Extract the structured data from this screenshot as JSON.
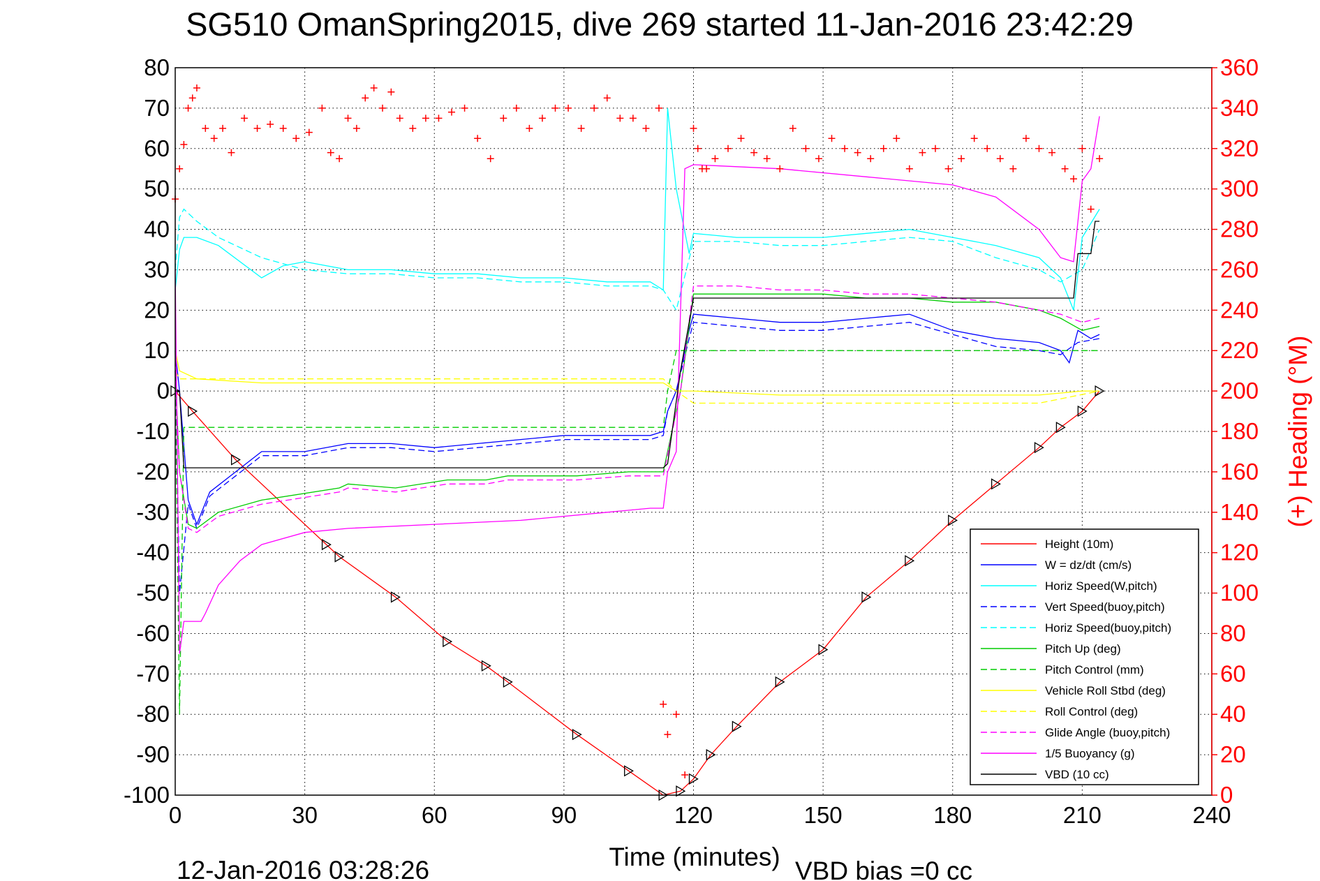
{
  "chart_data": {
    "type": "line",
    "title": "SG510 OmanSpring2015, dive 269 started 11-Jan-2016 23:42:29",
    "xlabel": "Time (minutes)",
    "ylabel_right": "(+) Heading (°M)",
    "footer_left": "12-Jan-2016 03:28:26",
    "footer_right": "VBD bias =0 cc",
    "xlim": [
      0,
      240
    ],
    "ylim": [
      -100,
      80
    ],
    "ylim_right": [
      0,
      360
    ],
    "x_ticks": [
      0,
      30,
      60,
      90,
      120,
      150,
      180,
      210,
      240
    ],
    "y_ticks": [
      80,
      70,
      60,
      50,
      40,
      30,
      20,
      10,
      0,
      -10,
      -20,
      -30,
      -40,
      -50,
      -60,
      -70,
      -80,
      -90,
      -100
    ],
    "y_ticks_right": [
      360,
      340,
      320,
      300,
      280,
      260,
      240,
      220,
      200,
      180,
      160,
      140,
      120,
      100,
      80,
      60,
      40,
      20,
      0
    ],
    "grid": true,
    "legend_position": "bottom-right",
    "series": [
      {
        "name": "Height (10m)",
        "color": "#ff0000",
        "dash": "solid",
        "axis": "left",
        "x": [
          0,
          4,
          14,
          35,
          38,
          51,
          63,
          72,
          77,
          93,
          105,
          113,
          117,
          120,
          124,
          130,
          140,
          150,
          160,
          170,
          180,
          190,
          200,
          205,
          210,
          214
        ],
        "y": [
          0,
          -5,
          -17,
          -38,
          -41,
          -51,
          -62,
          -68,
          -72,
          -85,
          -94,
          -100,
          -99,
          -96,
          -90,
          -83,
          -72,
          -64,
          -51,
          -42,
          -32,
          -23,
          -14,
          -9,
          -5,
          0
        ]
      },
      {
        "name": "W = dz/dt (cm/s)",
        "color": "#0000ff",
        "dash": "solid",
        "axis": "left",
        "x": [
          0,
          1,
          3,
          5,
          8,
          14,
          20,
          30,
          40,
          50,
          60,
          70,
          80,
          90,
          100,
          110,
          113,
          114,
          116,
          119,
          120,
          130,
          140,
          150,
          160,
          170,
          180,
          190,
          200,
          205,
          207,
          209,
          212,
          214
        ],
        "y": [
          10,
          0,
          -27,
          -33,
          -25,
          -20,
          -15,
          -15,
          -13,
          -13,
          -14,
          -13,
          -12,
          -11,
          -11,
          -11,
          -10,
          -5,
          0,
          15,
          19,
          18,
          17,
          17,
          18,
          19,
          15,
          13,
          12,
          10,
          7,
          15,
          13,
          14
        ]
      },
      {
        "name": "Horiz Speed(W,pitch)",
        "color": "#00ffff",
        "dash": "solid",
        "axis": "left",
        "x": [
          0,
          1,
          2,
          5,
          10,
          20,
          25,
          30,
          40,
          50,
          60,
          70,
          80,
          90,
          100,
          110,
          113,
          114,
          116,
          119,
          120,
          130,
          140,
          150,
          160,
          170,
          180,
          190,
          200,
          205,
          208,
          210,
          214
        ],
        "y": [
          25,
          35,
          38,
          38,
          36,
          28,
          31,
          32,
          30,
          30,
          29,
          29,
          28,
          28,
          27,
          27,
          25,
          70,
          50,
          34,
          39,
          38,
          38,
          38,
          39,
          40,
          38,
          36,
          33,
          28,
          20,
          38,
          45
        ]
      },
      {
        "name": "Vert Speed(buoy,pitch)",
        "color": "#0000ff",
        "dash": "dashed",
        "axis": "left",
        "x": [
          0,
          1,
          3,
          5,
          8,
          14,
          20,
          30,
          40,
          50,
          60,
          70,
          80,
          90,
          100,
          110,
          113,
          114,
          116,
          119,
          120,
          130,
          140,
          150,
          160,
          170,
          180,
          190,
          200,
          205,
          209,
          214
        ],
        "y": [
          10,
          -50,
          -28,
          -34,
          -26,
          -21,
          -16,
          -16,
          -14,
          -14,
          -15,
          -14,
          -13,
          -12,
          -12,
          -12,
          -11,
          -5,
          0,
          13,
          17,
          16,
          15,
          15,
          16,
          17,
          14,
          11,
          10,
          9,
          12,
          13
        ]
      },
      {
        "name": "Horiz Speed(buoy,pitch)",
        "color": "#00ffff",
        "dash": "dashed",
        "axis": "left",
        "x": [
          0,
          1,
          2,
          5,
          10,
          20,
          30,
          40,
          50,
          60,
          70,
          80,
          90,
          100,
          110,
          113,
          116,
          120,
          130,
          140,
          150,
          160,
          170,
          180,
          190,
          200,
          205,
          210,
          214
        ],
        "y": [
          30,
          43,
          45,
          42,
          38,
          33,
          30,
          29,
          29,
          28,
          28,
          27,
          27,
          26,
          26,
          25,
          20,
          37,
          37,
          36,
          36,
          37,
          38,
          37,
          33,
          30,
          27,
          30,
          40
        ]
      },
      {
        "name": "Pitch Up (deg)",
        "color": "#00cc00",
        "dash": "solid",
        "axis": "left",
        "x": [
          0,
          1,
          3,
          5,
          10,
          20,
          38,
          40,
          51,
          63,
          72,
          77,
          93,
          105,
          113,
          117,
          120,
          130,
          140,
          150,
          160,
          170,
          180,
          190,
          200,
          205,
          210,
          214
        ],
        "y": [
          5,
          -20,
          -33,
          -34,
          -30,
          -27,
          -24,
          -23,
          -24,
          -22,
          -22,
          -21,
          -21,
          -20,
          -20,
          0,
          24,
          24,
          24,
          24,
          23,
          23,
          22,
          22,
          20,
          18,
          15,
          16
        ]
      },
      {
        "name": "Pitch Control (mm)",
        "color": "#00cc00",
        "dash": "dashed",
        "axis": "left",
        "x": [
          0,
          1,
          2,
          20,
          40,
          60,
          80,
          100,
          113,
          114,
          116,
          120,
          140,
          160,
          180,
          200,
          210,
          214
        ],
        "y": [
          5,
          -80,
          -9,
          -9,
          -9,
          -9,
          -9,
          -9,
          -9,
          0,
          10,
          10,
          10,
          10,
          10,
          10,
          10,
          10
        ]
      },
      {
        "name": "Vehicle Roll Stbd (deg)",
        "color": "#ffff00",
        "dash": "solid",
        "axis": "left",
        "x": [
          0,
          1,
          5,
          20,
          35,
          50,
          65,
          80,
          95,
          110,
          113,
          116,
          120,
          140,
          160,
          180,
          200,
          210,
          214
        ],
        "y": [
          10,
          5,
          3,
          2,
          2,
          2,
          2,
          2,
          2,
          2,
          2,
          0,
          0,
          -1,
          -1,
          -1,
          -1,
          0,
          0
        ]
      },
      {
        "name": "Roll Control (deg)",
        "color": "#ffff00",
        "dash": "dashed",
        "axis": "left",
        "x": [
          0,
          1,
          5,
          20,
          40,
          60,
          80,
          100,
          113,
          116,
          120,
          140,
          160,
          180,
          200,
          214
        ],
        "y": [
          5,
          3,
          3,
          3,
          3,
          3,
          3,
          3,
          3,
          0,
          -3,
          -3,
          -3,
          -3,
          -3,
          0
        ]
      },
      {
        "name": "Glide Angle (buoy,pitch)",
        "color": "#ff00ff",
        "dash": "dashed",
        "axis": "left",
        "x": [
          0,
          1,
          3,
          5,
          10,
          20,
          38,
          40,
          51,
          63,
          72,
          77,
          93,
          105,
          113,
          117,
          120,
          130,
          140,
          150,
          160,
          170,
          180,
          190,
          200,
          205,
          210,
          214
        ],
        "y": [
          5,
          -20,
          -34,
          -35,
          -31,
          -28,
          -25,
          -24,
          -25,
          -23,
          -23,
          -22,
          -22,
          -21,
          -21,
          0,
          26,
          26,
          25,
          25,
          24,
          24,
          23,
          22,
          20,
          19,
          17,
          18
        ]
      },
      {
        "name": "1/5 Buoyancy (g)",
        "color": "#ff00ff",
        "dash": "solid",
        "axis": "left",
        "x": [
          0,
          1,
          2,
          6,
          7,
          10,
          15,
          20,
          30,
          40,
          60,
          80,
          100,
          110,
          113,
          114,
          116,
          118,
          120,
          140,
          160,
          180,
          190,
          200,
          205,
          208,
          210,
          212,
          214
        ],
        "y": [
          30,
          -65,
          -57,
          -57,
          -55,
          -48,
          -42,
          -38,
          -35,
          -34,
          -33,
          -32,
          -30,
          -29,
          -29,
          -20,
          -15,
          55,
          56,
          55,
          53,
          51,
          48,
          40,
          33,
          32,
          52,
          55,
          68
        ]
      },
      {
        "name": "VBD (10 cc)",
        "color": "#000000",
        "dash": "solid",
        "axis": "left",
        "x": [
          0,
          1,
          2,
          113,
          114,
          117,
          120,
          208,
          209,
          212,
          213,
          214
        ],
        "y": [
          0,
          0,
          -19,
          -19,
          -18,
          5,
          23,
          23,
          34,
          34,
          42,
          42
        ]
      },
      {
        "name": "Heading",
        "color": "#ff0000",
        "dash": "points",
        "axis": "right",
        "marker": "+",
        "x": [
          0,
          1,
          2,
          3,
          4,
          5,
          7,
          9,
          11,
          13,
          16,
          19,
          22,
          25,
          28,
          31,
          34,
          36,
          38,
          40,
          42,
          44,
          46,
          48,
          50,
          52,
          55,
          58,
          61,
          64,
          67,
          70,
          73,
          76,
          79,
          82,
          85,
          88,
          91,
          94,
          97,
          100,
          103,
          106,
          109,
          112,
          113,
          114,
          116,
          118,
          120,
          121,
          122,
          123,
          125,
          128,
          131,
          134,
          137,
          140,
          143,
          146,
          149,
          152,
          155,
          158,
          161,
          164,
          167,
          170,
          173,
          176,
          179,
          182,
          185,
          188,
          191,
          194,
          197,
          200,
          203,
          206,
          208,
          210,
          212,
          214
        ],
        "y": [
          295,
          310,
          322,
          340,
          345,
          350,
          330,
          325,
          330,
          318,
          335,
          330,
          332,
          330,
          325,
          328,
          340,
          318,
          315,
          335,
          330,
          345,
          350,
          340,
          348,
          335,
          330,
          335,
          335,
          338,
          340,
          325,
          315,
          335,
          340,
          330,
          335,
          340,
          340,
          330,
          340,
          345,
          335,
          335,
          330,
          340,
          45,
          30,
          40,
          10,
          330,
          320,
          310,
          310,
          315,
          320,
          325,
          318,
          315,
          310,
          330,
          320,
          315,
          325,
          320,
          318,
          315,
          320,
          325,
          310,
          318,
          320,
          310,
          315,
          325,
          320,
          315,
          310,
          325,
          320,
          318,
          310,
          305,
          320,
          290,
          315
        ]
      }
    ]
  }
}
